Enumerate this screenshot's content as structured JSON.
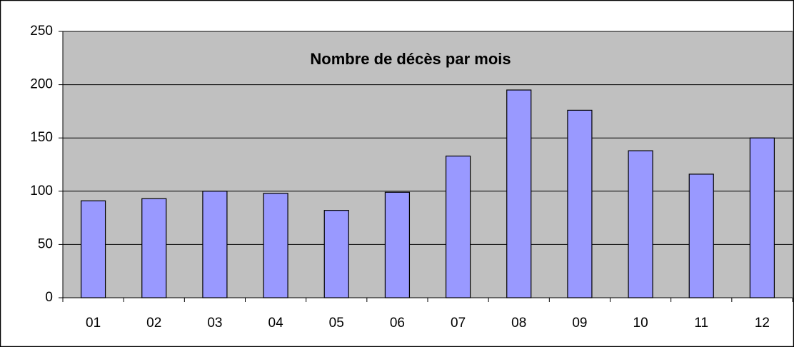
{
  "chart_data": {
    "type": "bar",
    "title": "Nombre de décès par mois",
    "categories": [
      "01",
      "02",
      "03",
      "04",
      "05",
      "06",
      "07",
      "08",
      "09",
      "10",
      "11",
      "12"
    ],
    "values": [
      91,
      93,
      100,
      98,
      82,
      99,
      133,
      195,
      176,
      138,
      116,
      150
    ],
    "color": "#9999ff",
    "ylim": [
      0,
      250
    ],
    "yticks": [
      0,
      50,
      100,
      150,
      200,
      250
    ],
    "grid": true
  }
}
